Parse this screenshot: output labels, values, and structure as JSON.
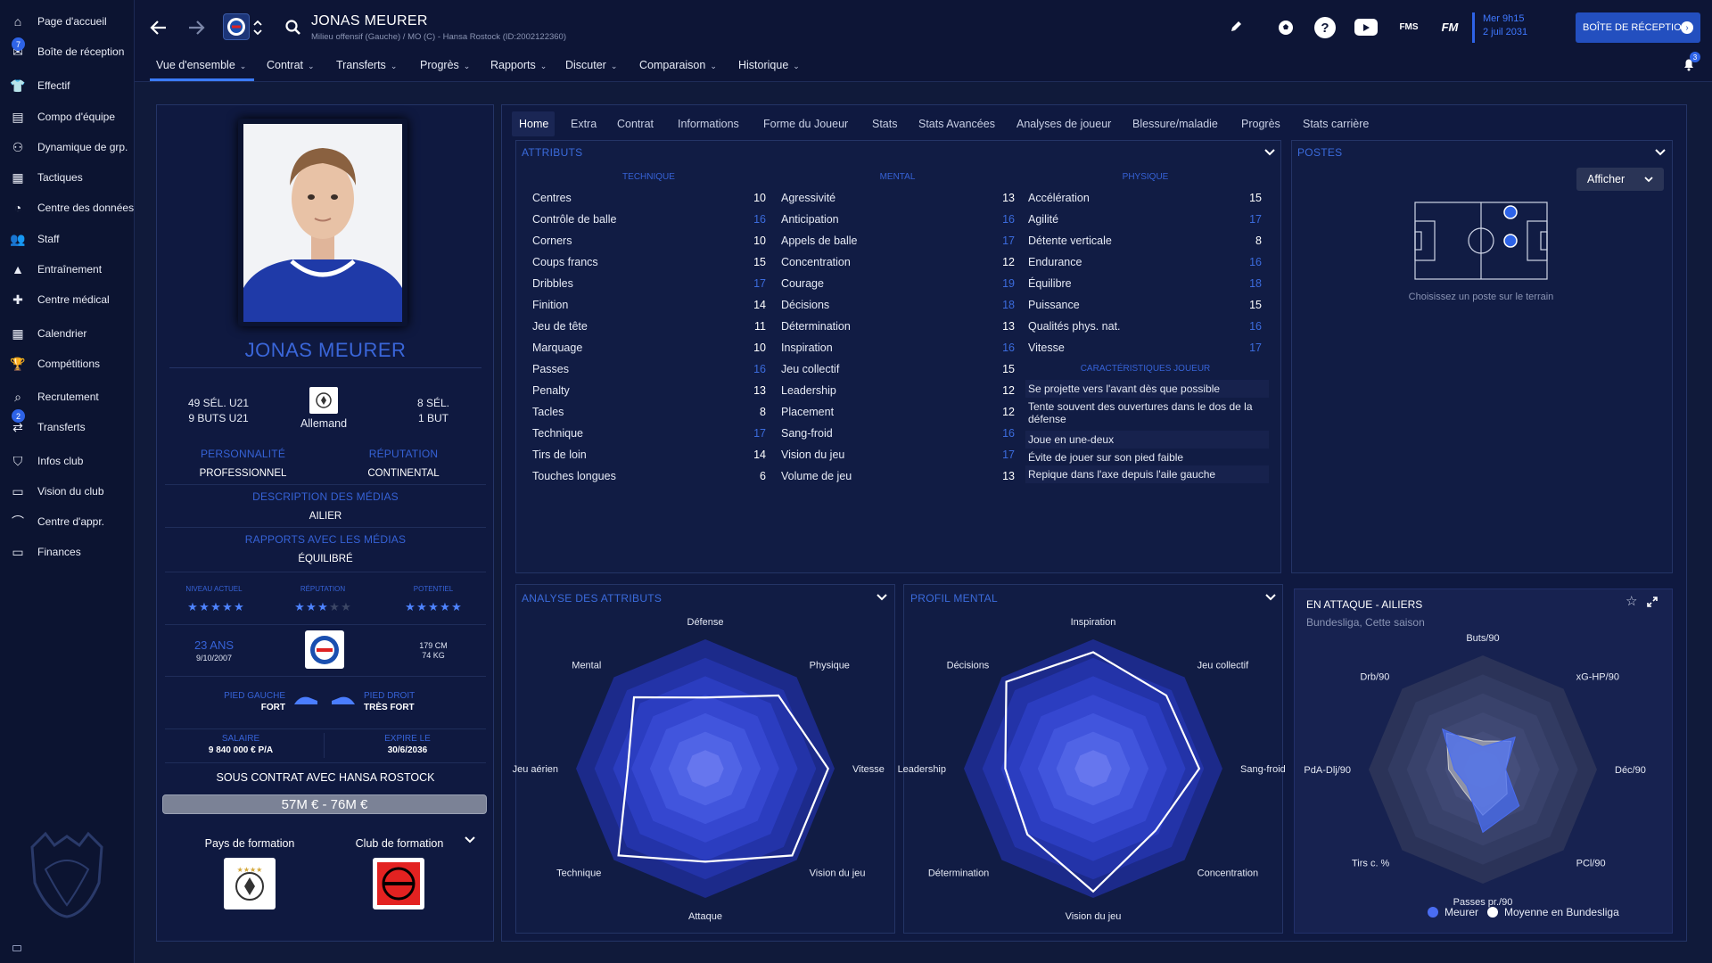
{
  "sidebar": {
    "items": [
      {
        "label": "Page d'accueil",
        "icon": "home-icon"
      },
      {
        "label": "Boîte de réception",
        "icon": "inbox-icon",
        "badge": "7"
      },
      {
        "label": "Effectif",
        "icon": "squad-icon"
      },
      {
        "label": "Compo d'équipe",
        "icon": "clipboard-icon"
      },
      {
        "label": "Dynamique de grp.",
        "icon": "group-dynamics-icon"
      },
      {
        "label": "Tactiques",
        "icon": "tactics-icon"
      },
      {
        "label": "Centre des données",
        "icon": "data-hub-icon"
      },
      {
        "label": "Staff",
        "icon": "staff-icon"
      },
      {
        "label": "Entraînement",
        "icon": "training-icon"
      },
      {
        "label": "Centre médical",
        "icon": "medical-icon"
      },
      {
        "label": "Calendrier",
        "icon": "calendar-icon"
      },
      {
        "label": "Compétitions",
        "icon": "trophy-icon"
      },
      {
        "label": "Recrutement",
        "icon": "scouting-icon"
      },
      {
        "label": "Transferts",
        "icon": "transfers-icon",
        "badge": "2"
      },
      {
        "label": "Infos club",
        "icon": "club-shield-icon"
      },
      {
        "label": "Vision du club",
        "icon": "club-vision-icon"
      },
      {
        "label": "Centre d'appr.",
        "icon": "academy-icon"
      },
      {
        "label": "Finances",
        "icon": "finances-icon"
      }
    ]
  },
  "header": {
    "player_name": "JONAS MEURER",
    "player_sub": "Milieu offensif (Gauche) / MO (C) - Hansa Rostock (ID:2002122360)",
    "date_line1": "Mer 9h15",
    "date_line2": "2 juil 2031",
    "inbox_label": "BOÎTE DE RÉCEPTION",
    "fms_label": "FMS",
    "fm_label": "FM",
    "notif_count": "3"
  },
  "nav": {
    "items": [
      "Vue d'ensemble",
      "Contrat",
      "Transferts",
      "Progrès",
      "Rapports",
      "Discuter",
      "Comparaison",
      "Historique"
    ]
  },
  "tabs": [
    "Home",
    "Extra",
    "Contrat",
    "Informations",
    "Forme du Joueur",
    "Stats",
    "Stats Avancées",
    "Analyses de joueur",
    "Blessure/maladie",
    "Progrès",
    "Stats carrière"
  ],
  "profile": {
    "name": "JONAS MEURER",
    "u21_caps": "49 SÉL. U21",
    "u21_goals": "9 BUTS U21",
    "nationality": "Allemand",
    "caps": "8 SÉL.",
    "goals": "1 BUT",
    "personality_label": "PERSONNALITÉ",
    "personality": "PROFESSIONNEL",
    "reputation_label": "RÉPUTATION",
    "reputation": "CONTINENTAL",
    "media_desc_label": "DESCRIPTION DES MÉDIAS",
    "media_desc": "AILIER",
    "media_rel_label": "RAPPORTS AVEC LES MÉDIAS",
    "media_rel": "ÉQUILIBRÉ",
    "current_ability_label": "NIVEAU ACTUEL",
    "current_ability_stars": 5,
    "reputation_stars_label": "RÉPUTATION",
    "reputation_stars": 3,
    "potential_label": "POTENTIEL",
    "potential_stars": 5,
    "age": "23 ANS",
    "dob": "9/10/2007",
    "height": "179 CM",
    "weight": "74 KG",
    "left_foot_label": "PIED GAUCHE",
    "left_foot": "FORT",
    "right_foot_label": "PIED DROIT",
    "right_foot": "TRÈS FORT",
    "salary_label": "SALAIRE",
    "salary": "9 840 000 € P/A",
    "expires_label": "EXPIRE LE",
    "expires": "30/6/2036",
    "contract_text": "SOUS CONTRAT AVEC HANSA ROSTOCK",
    "value_range": "57M € - 76M €",
    "training_country_label": "Pays de formation",
    "training_club_label": "Club de formation"
  },
  "attributes": {
    "title": "ATTRIBUTS",
    "technique_label": "TECHNIQUE",
    "mental_label": "MENTAL",
    "physique_label": "PHYSIQUE",
    "traits_label": "CARACTÉRISTIQUES JOUEUR",
    "technique": [
      [
        "Centres",
        "10"
      ],
      [
        "Contrôle de balle",
        "16"
      ],
      [
        "Corners",
        "10"
      ],
      [
        "Coups francs",
        "15"
      ],
      [
        "Dribbles",
        "17"
      ],
      [
        "Finition",
        "14"
      ],
      [
        "Jeu de tête",
        "11"
      ],
      [
        "Marquage",
        "10"
      ],
      [
        "Passes",
        "16"
      ],
      [
        "Penalty",
        "13"
      ],
      [
        "Tacles",
        "8"
      ],
      [
        "Technique",
        "17"
      ],
      [
        "Tirs de loin",
        "14"
      ],
      [
        "Touches longues",
        "6"
      ]
    ],
    "mental": [
      [
        "Agressivité",
        "13"
      ],
      [
        "Anticipation",
        "16"
      ],
      [
        "Appels de balle",
        "17"
      ],
      [
        "Concentration",
        "12"
      ],
      [
        "Courage",
        "19"
      ],
      [
        "Décisions",
        "18"
      ],
      [
        "Détermination",
        "13"
      ],
      [
        "Inspiration",
        "16"
      ],
      [
        "Jeu collectif",
        "15"
      ],
      [
        "Leadership",
        "12"
      ],
      [
        "Placement",
        "12"
      ],
      [
        "Sang-froid",
        "16"
      ],
      [
        "Vision du jeu",
        "17"
      ],
      [
        "Volume de jeu",
        "13"
      ]
    ],
    "physique": [
      [
        "Accélération",
        "15"
      ],
      [
        "Agilité",
        "17"
      ],
      [
        "Détente verticale",
        "8"
      ],
      [
        "Endurance",
        "16"
      ],
      [
        "Équilibre",
        "18"
      ],
      [
        "Puissance",
        "15"
      ],
      [
        "Qualités phys. nat.",
        "16"
      ],
      [
        "Vitesse",
        "17"
      ]
    ],
    "traits": [
      "Se projette vers l'avant dès que possible",
      "Tente souvent des ouvertures dans le dos de la défense",
      "Joue en une-deux",
      "Évite de jouer sur son pied faible",
      "Repique dans l'axe depuis l'aile gauche"
    ]
  },
  "positions": {
    "title": "POSTES",
    "show_label": "Afficher",
    "hint": "Choisissez un poste sur le terrain"
  },
  "attr_analysis": {
    "title": "ANALYSE DES ATTRIBUTS",
    "axes": [
      "Défense",
      "Physique",
      "Vitesse",
      "Vision du jeu",
      "Attaque",
      "Technique",
      "Jeu aérien",
      "Mental"
    ],
    "values": [
      0.55,
      0.8,
      0.95,
      0.95,
      0.72,
      0.95,
      0.6,
      0.78
    ]
  },
  "mental_profile": {
    "title": "PROFIL MENTAL",
    "axes": [
      "Inspiration",
      "Jeu collectif",
      "Sang-froid",
      "Concentration",
      "Vision du jeu",
      "Détermination",
      "Leadership",
      "Décisions"
    ],
    "values": [
      0.9,
      0.8,
      0.82,
      0.68,
      0.95,
      0.72,
      0.68,
      0.95
    ]
  },
  "attack_radar": {
    "title": "EN ATTAQUE - AILIERS",
    "subtitle": "Bundesliga, Cette saison",
    "axes": [
      "Buts/90",
      "xG-HP/90",
      "Déc/90",
      "PCl/90",
      "Passes pr./90",
      "Tirs c. %",
      "PdA-Dlj/90",
      "Drb/90"
    ],
    "legend_player": "Meurer",
    "legend_avg": "Moyenne en Bundesliga",
    "player_values": [
      0.2,
      0.4,
      0.2,
      0.45,
      0.55,
      0.2,
      0.25,
      0.5
    ],
    "avg_values": [
      0.25,
      0.35,
      0.2,
      0.3,
      0.4,
      0.25,
      0.3,
      0.45
    ],
    "colors": {
      "player": "#4a6df2",
      "avg": "#cccccc"
    }
  },
  "colors": {
    "accent": "#2e63e7",
    "background": "#101a3a",
    "panel": "#111c44",
    "label": "#3662d6"
  }
}
